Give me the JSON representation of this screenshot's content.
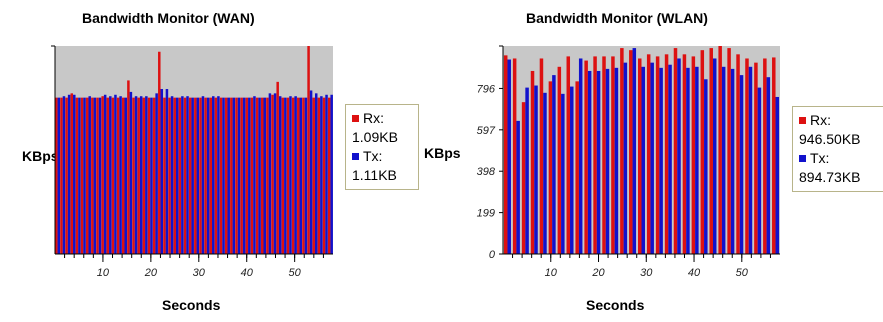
{
  "chart_data": [
    {
      "type": "bar",
      "title": "Bandwidth Monitor (WAN)",
      "xlabel": "Seconds",
      "ylabel": "KBps",
      "xlim": [
        0,
        58
      ],
      "ylim": [
        0,
        1.45
      ],
      "x_ticks": [
        10,
        20,
        30,
        40,
        50
      ],
      "y_ticks": [],
      "colors": {
        "rx": "#dd1111",
        "tx": "#1111cc",
        "plot_bg": "#c8c8c8"
      },
      "series": [
        {
          "name": "Rx",
          "values": [
            1.09,
            1.09,
            1.09,
            1.12,
            1.09,
            1.09,
            1.09,
            1.09,
            1.09,
            1.1,
            1.09,
            1.09,
            1.09,
            1.09,
            1.21,
            1.09,
            1.09,
            1.09,
            1.09,
            1.09,
            1.41,
            1.09,
            1.09,
            1.09,
            1.09,
            1.09,
            1.09,
            1.09,
            1.09,
            1.09,
            1.09,
            1.09,
            1.09,
            1.09,
            1.09,
            1.09,
            1.09,
            1.09,
            1.09,
            1.09,
            1.09,
            1.09,
            1.11,
            1.2,
            1.09,
            1.09,
            1.09,
            1.09,
            1.09,
            1.45,
            1.09,
            1.09,
            1.09,
            1.09
          ]
        },
        {
          "name": "Tx",
          "values": [
            1.09,
            1.1,
            1.11,
            1.11,
            1.09,
            1.09,
            1.1,
            1.09,
            1.09,
            1.11,
            1.1,
            1.11,
            1.1,
            1.09,
            1.13,
            1.1,
            1.1,
            1.1,
            1.09,
            1.12,
            1.15,
            1.15,
            1.1,
            1.09,
            1.1,
            1.1,
            1.09,
            1.09,
            1.1,
            1.09,
            1.1,
            1.1,
            1.09,
            1.09,
            1.09,
            1.09,
            1.09,
            1.09,
            1.1,
            1.09,
            1.09,
            1.12,
            1.12,
            1.1,
            1.09,
            1.1,
            1.1,
            1.09,
            1.09,
            1.14,
            1.12,
            1.1,
            1.11,
            1.11
          ]
        },
        {
          "name": "legend",
          "rx_label": "Rx:",
          "rx_value": "1.09KB",
          "tx_label": "Tx:",
          "tx_value": "1.11KB"
        }
      ]
    },
    {
      "type": "bar",
      "title": "Bandwidth Monitor (WLAN)",
      "xlabel": "Seconds",
      "ylabel": "KBps",
      "xlim": [
        0,
        58
      ],
      "ylim": [
        0,
        1000
      ],
      "x_ticks": [
        10,
        20,
        30,
        40,
        50
      ],
      "y_ticks": [
        0,
        199,
        398,
        597,
        796
      ],
      "y_tick_labels": [
        "0",
        "199",
        "398",
        "597",
        "796"
      ],
      "colors": {
        "rx": "#dd1111",
        "tx": "#1111cc",
        "plot_bg": "#c8c8c8"
      },
      "series": [
        {
          "name": "Rx",
          "values": [
            955,
            940,
            730,
            880,
            940,
            830,
            900,
            950,
            830,
            930,
            950,
            950,
            950,
            990,
            980,
            940,
            960,
            950,
            960,
            990,
            960,
            950,
            980,
            990,
            1000,
            990,
            960,
            940,
            920,
            940,
            945
          ]
        },
        {
          "name": "Tx",
          "values": [
            935,
            640,
            800,
            810,
            775,
            860,
            770,
            805,
            940,
            880,
            880,
            890,
            895,
            920,
            990,
            900,
            920,
            895,
            910,
            940,
            895,
            900,
            840,
            940,
            900,
            890,
            860,
            900,
            800,
            850,
            755
          ]
        },
        {
          "name": "legend",
          "rx_label": "Rx:",
          "rx_value": "946.50KB",
          "tx_label": "Tx:",
          "tx_value": "894.73KB"
        }
      ]
    }
  ]
}
